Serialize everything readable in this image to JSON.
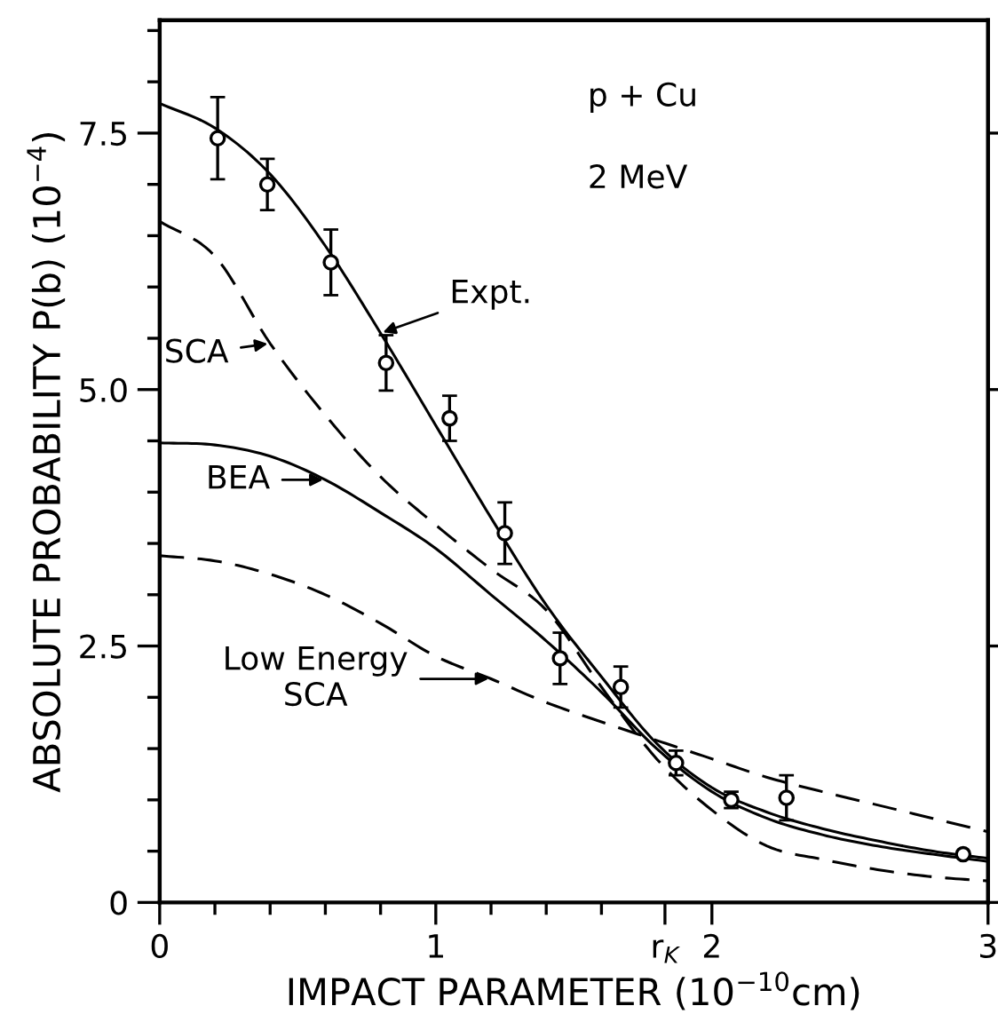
{
  "chart_data": {
    "type": "line",
    "xlabel": "IMPACT PARAMETER (10$^{−10}$cm)",
    "ylabel": "ABSOLUTE PROBABILITY P(b) (10$^{−4}$)",
    "xlim": [
      0,
      3
    ],
    "ylim": [
      0,
      8.6
    ],
    "xticks": [
      0,
      {
        "value": 0.2,
        "label": null
      },
      {
        "value": 0.4,
        "label": null
      },
      {
        "value": 0.6,
        "label": null
      },
      {
        "value": 0.8,
        "label": null
      },
      1,
      {
        "value": 1.2,
        "label": null
      },
      {
        "value": 1.4,
        "label": null
      },
      {
        "value": 1.6,
        "label": null
      },
      {
        "value": 1.83,
        "label": "r$_{K}$"
      },
      2,
      3
    ],
    "yticks": [
      0,
      {
        "value": 0.5,
        "label": null
      },
      {
        "value": 1,
        "label": null
      },
      {
        "value": 1.5,
        "label": null
      },
      {
        "value": 2,
        "label": null
      },
      {
        "value": 2.5,
        "label": "2.5"
      },
      {
        "value": 3,
        "label": null
      },
      {
        "value": 3.5,
        "label": null
      },
      {
        "value": 4,
        "label": null
      },
      {
        "value": 4.5,
        "label": null
      },
      {
        "value": 5,
        "label": "5.0"
      },
      {
        "value": 5.5,
        "label": null
      },
      {
        "value": 6,
        "label": null
      },
      {
        "value": 6.5,
        "label": null
      },
      {
        "value": 7,
        "label": null
      },
      {
        "value": 7.5,
        "label": "7.5"
      },
      {
        "value": 8,
        "label": null
      },
      {
        "value": 8.5,
        "label": null
      }
    ],
    "grid": false,
    "series": [
      {
        "type": "scatter",
        "marker": "circle",
        "color": "#000000",
        "x": [
          0.21,
          0.39,
          0.62,
          0.82,
          1.05,
          1.25,
          1.45,
          1.67,
          1.87,
          2.07,
          2.27,
          2.91
        ],
        "values": [
          7.45,
          7.0,
          6.24,
          5.26,
          4.72,
          3.6,
          2.38,
          2.1,
          1.36,
          1.0,
          1.02,
          0.47
        ],
        "errors": [
          0.4,
          0.25,
          0.32,
          0.27,
          0.22,
          0.3,
          0.25,
          0.2,
          0.12,
          0.08,
          0.22,
          null
        ]
      },
      {
        "line_style": "solid",
        "color": "#000000",
        "x": [
          0,
          0.2,
          0.4,
          0.6,
          0.8,
          1.0,
          1.2,
          1.4,
          1.6,
          1.8,
          2.0,
          2.2,
          2.4,
          2.6,
          2.8,
          3.0
        ],
        "values": [
          7.79,
          7.55,
          7.1,
          6.4,
          5.55,
          4.65,
          3.75,
          2.9,
          2.2,
          1.55,
          1.12,
          0.88,
          0.72,
          0.6,
          0.5,
          0.43
        ]
      },
      {
        "line_style": "dashed",
        "color": "#000000",
        "x": [
          0,
          0.2,
          0.4,
          0.6,
          0.8,
          1.0,
          1.2,
          1.4,
          1.6,
          1.8,
          2.0,
          2.2,
          2.4,
          2.6,
          2.8,
          3.0
        ],
        "values": [
          6.64,
          6.3,
          5.45,
          4.75,
          4.15,
          3.68,
          3.25,
          2.85,
          2.1,
          1.4,
          0.9,
          0.55,
          0.42,
          0.32,
          0.25,
          0.21
        ]
      },
      {
        "line_style": "solid",
        "color": "#000000",
        "x": [
          0,
          0.2,
          0.4,
          0.6,
          0.8,
          1.0,
          1.2,
          1.4,
          1.6,
          1.8,
          2.0,
          2.2,
          2.4,
          2.6,
          2.8,
          3.0
        ],
        "values": [
          4.48,
          4.46,
          4.35,
          4.12,
          3.8,
          3.45,
          3.0,
          2.55,
          2.05,
          1.5,
          1.08,
          0.82,
          0.66,
          0.55,
          0.47,
          0.4
        ]
      },
      {
        "line_style": "dashed",
        "color": "#000000",
        "x": [
          0,
          0.2,
          0.4,
          0.6,
          0.8,
          1.0,
          1.2,
          1.4,
          1.6,
          1.8,
          2.0,
          2.2,
          2.4,
          2.6,
          2.8,
          3.0
        ],
        "values": [
          3.38,
          3.33,
          3.2,
          3.0,
          2.72,
          2.4,
          2.18,
          1.95,
          1.76,
          1.58,
          1.4,
          1.22,
          1.08,
          0.95,
          0.82,
          0.69
        ]
      }
    ],
    "annotations": [
      {
        "text": "Expt.",
        "x": 0.8,
        "y": 5.55
      },
      {
        "text": "SCA",
        "x": 0.4,
        "y": 5.45
      },
      {
        "text": "BEA",
        "x": 0.6,
        "y": 4.12
      },
      {
        "text": "Low Energy\nSCA",
        "x": 1.2,
        "y": 2.18
      },
      "p + Cu",
      "2 MeV"
    ]
  }
}
